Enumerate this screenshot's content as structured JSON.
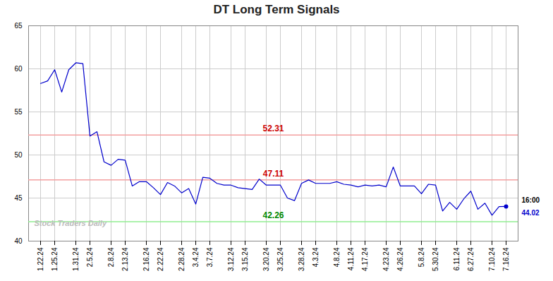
{
  "chart_data": {
    "type": "line",
    "title": "DT Long Term Signals",
    "color": "#0000cc",
    "marker": "last",
    "grid": true,
    "ylim": [
      40,
      65
    ],
    "yticks": [
      40,
      45,
      50,
      55,
      60,
      65
    ],
    "categories": [
      "1.22.24",
      null,
      "1.25.24",
      null,
      null,
      "1.31.24",
      null,
      "2.5.24",
      null,
      null,
      "2.8.24",
      null,
      "2.13.24",
      null,
      null,
      "2.16.24",
      null,
      "2.22.24",
      null,
      null,
      "2.28.24",
      null,
      "3.4.24",
      null,
      "3.7.24",
      null,
      null,
      "3.12.24",
      null,
      "3.15.24",
      null,
      null,
      "3.20.24",
      null,
      "3.25.24",
      null,
      null,
      "3.28.24",
      null,
      "4.3.24",
      null,
      null,
      "4.8.24",
      null,
      "4.11.24",
      null,
      "4.17.24",
      null,
      null,
      "4.23.24",
      null,
      "4.26.24",
      null,
      null,
      "5.8.24",
      null,
      "5.30.24",
      null,
      null,
      "6.11.24",
      null,
      "6.27.24",
      null,
      null,
      "7.10.24",
      null,
      "7.16.24"
    ],
    "values": [
      58.3,
      58.6,
      59.9,
      57.3,
      59.9,
      60.7,
      60.6,
      52.2,
      52.7,
      49.2,
      48.8,
      49.5,
      49.4,
      46.4,
      46.9,
      46.9,
      46.2,
      45.4,
      46.8,
      46.4,
      45.6,
      46.1,
      44.3,
      47.4,
      47.3,
      46.7,
      46.5,
      46.5,
      46.2,
      46.1,
      46.0,
      47.2,
      46.5,
      46.5,
      46.5,
      45.0,
      44.7,
      46.7,
      47.1,
      46.7,
      46.7,
      46.7,
      46.9,
      46.6,
      46.5,
      46.3,
      46.5,
      46.4,
      46.5,
      46.3,
      48.6,
      46.4,
      46.4,
      46.4,
      45.5,
      46.6,
      46.5,
      43.5,
      44.5,
      43.7,
      44.9,
      45.8,
      43.7,
      44.4,
      43.0,
      44.0,
      44.02
    ],
    "hlines": [
      {
        "value": 52.31,
        "color": "#f4a0a0",
        "label": "52.31",
        "label_color": "#cc0000"
      },
      {
        "value": 47.11,
        "color": "#f4a0a0",
        "label": "47.11",
        "label_color": "#cc0000"
      },
      {
        "value": 42.26,
        "color": "#90ee90",
        "label": "42.26",
        "label_color": "#008800"
      }
    ],
    "end_label": {
      "time": "16:00",
      "price": "44.02",
      "value": 44.02
    },
    "watermark": {
      "text": "Stock Traders Daily",
      "color": "#bbbbbb"
    }
  }
}
